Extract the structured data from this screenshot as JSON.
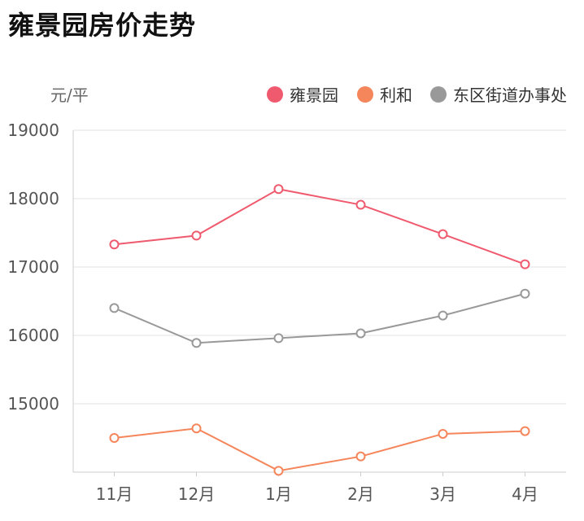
{
  "page": {
    "title": "雍景园房价走势"
  },
  "chart_data": {
    "type": "line",
    "unit_label": "元/平",
    "categories": [
      "11月",
      "12月",
      "1月",
      "2月",
      "3月",
      "4月"
    ],
    "ylim": [
      14000,
      19000
    ],
    "yticks": [
      15000,
      16000,
      17000,
      18000,
      19000
    ],
    "grid": true,
    "legend_position": "top-right",
    "series": [
      {
        "name": "雍景园",
        "color": "#f05a6e",
        "values": [
          17330,
          17460,
          18140,
          17910,
          17480,
          17040
        ]
      },
      {
        "name": "利和",
        "color": "#f5855a",
        "values": [
          14500,
          14640,
          14020,
          14230,
          14560,
          14600
        ]
      },
      {
        "name": "东区街道办事处",
        "color": "#999999",
        "values": [
          16400,
          15890,
          15960,
          16030,
          16290,
          16610
        ]
      }
    ]
  }
}
